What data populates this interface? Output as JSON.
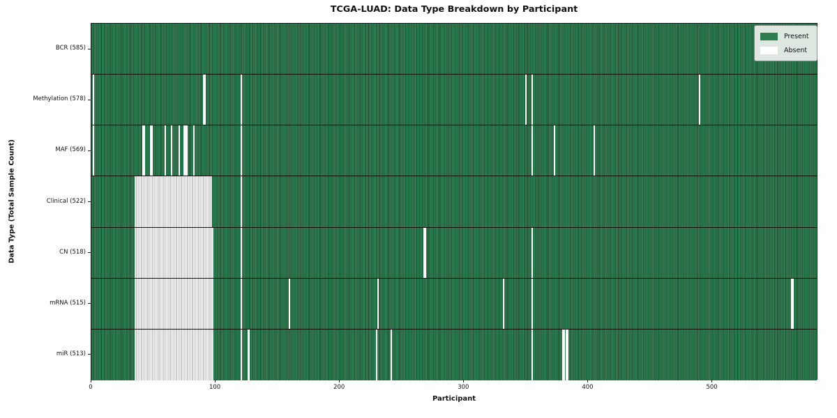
{
  "title": "TCGA-LUAD: Data Type Breakdown by Participant",
  "legend": {
    "present_label": "Present",
    "absent_label": "Absent"
  },
  "colors": {
    "present_green": "#2e7d50",
    "present_cell_line": "#1b4c30",
    "absent_white": "#fbfbfb",
    "absent_cell_line": "#9a9a9a",
    "legend_bg": "#e9ede9",
    "axis": "#111111"
  },
  "chart_data": {
    "type": "heatmap",
    "title": "TCGA-LUAD: Data Type Breakdown by Participant",
    "xlabel": "Participant",
    "ylabel": "Data Type (Total Sample Count)",
    "x_range": [
      0,
      585
    ],
    "x_ticks": [
      0,
      100,
      200,
      300,
      400,
      500
    ],
    "grid": false,
    "legend_position": "upper right",
    "legend": [
      {
        "label": "Present",
        "color": "#2e7d50"
      },
      {
        "label": "Absent",
        "color": "#ffffff"
      }
    ],
    "rows": [
      {
        "label": "BCR (585)",
        "name": "BCR",
        "count": 585,
        "absent": []
      },
      {
        "label": "Methylation (578)",
        "name": "Methylation",
        "count": 578,
        "absent": [
          1,
          90,
          91,
          120,
          349,
          354,
          489
        ]
      },
      {
        "label": "MAF (569)",
        "name": "MAF",
        "count": 569,
        "absent": [
          1,
          41,
          42,
          47,
          48,
          59,
          64,
          70,
          74,
          75,
          76,
          82,
          120,
          354,
          372,
          404
        ]
      },
      {
        "label": "Clinical (522)",
        "name": "Clinical",
        "count": 522,
        "absent": [
          [
            35,
            96
          ],
          120
        ]
      },
      {
        "label": "CN (518)",
        "name": "CN",
        "count": 518,
        "absent": [
          [
            35,
            97
          ],
          120,
          267,
          268,
          354
        ]
      },
      {
        "label": "mRNA (515)",
        "name": "mRNA",
        "count": 515,
        "absent": [
          [
            35,
            97
          ],
          120,
          159,
          230,
          331,
          354,
          563,
          564
        ]
      },
      {
        "label": "miR (513)",
        "name": "miR",
        "count": 513,
        "absent": [
          [
            35,
            97
          ],
          120,
          126,
          229,
          241,
          354,
          379,
          380,
          382,
          383
        ]
      }
    ]
  }
}
